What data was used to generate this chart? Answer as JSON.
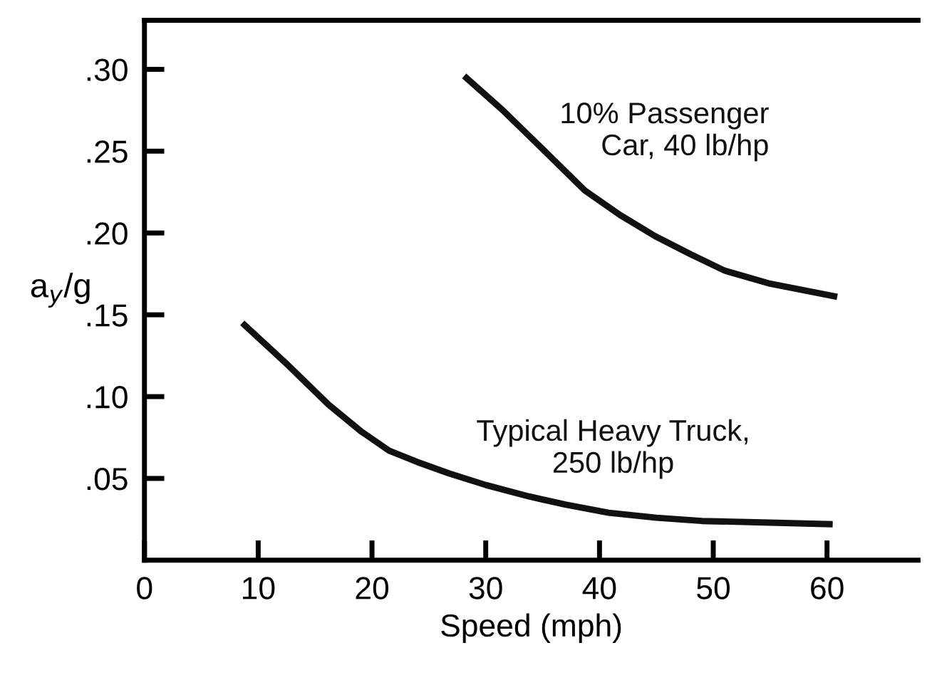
{
  "chart_data": {
    "type": "line",
    "xlabel": "Speed (mph)",
    "ylabel": "a$_{y}$/g",
    "xlim": [
      0,
      68
    ],
    "ylim": [
      0,
      0.33
    ],
    "xticks": [
      0,
      10,
      20,
      30,
      40,
      50,
      60
    ],
    "yticks": [
      {
        "value": 0.05,
        "label": ".05"
      },
      {
        "value": 0.1,
        "label": ".10"
      },
      {
        "value": 0.15,
        "label": ".15"
      },
      {
        "value": 0.2,
        "label": ".20"
      },
      {
        "value": 0.25,
        "label": ".25"
      },
      {
        "value": 0.3,
        "label": ".30"
      }
    ],
    "grid": false,
    "legend": false,
    "marker": "none",
    "line_style": "solid",
    "series": [
      {
        "name": "10% Passenger Car, 40 lb/hp",
        "color": "#111111",
        "x": [
          28.1,
          31.5,
          34.6,
          38.7,
          41.8,
          44.9,
          48.0,
          51.0,
          55.0,
          60.9
        ],
        "values": [
          0.296,
          0.275,
          0.254,
          0.226,
          0.211,
          0.198,
          0.187,
          0.177,
          0.169,
          0.161
        ]
      },
      {
        "name": "Typical Heavy Truck, 250 lb/hp",
        "color": "#111111",
        "x": [
          8.6,
          12.5,
          16.2,
          19.0,
          21.5,
          24.0,
          26.8,
          30.0,
          33.8,
          37.0,
          40.8,
          45.0,
          49.0,
          55.0,
          60.5
        ],
        "values": [
          0.145,
          0.12,
          0.095,
          0.079,
          0.067,
          0.06,
          0.053,
          0.046,
          0.039,
          0.034,
          0.029,
          0.026,
          0.024,
          0.023,
          0.022
        ]
      }
    ]
  }
}
